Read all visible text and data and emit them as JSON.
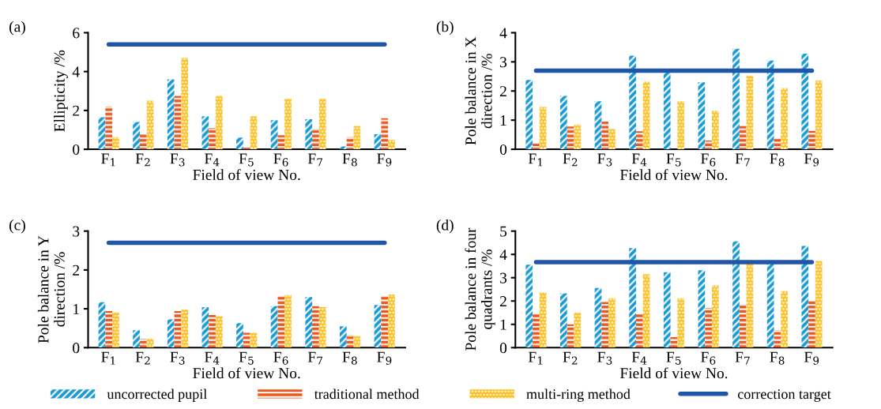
{
  "chart_data": [
    {
      "type": "bar",
      "annotations": [
        "(a)"
      ],
      "xlabel": "Field of view No.",
      "ylabel": "Ellipticity /%",
      "categories": [
        "F$_{1}$",
        "F$_{2}$",
        "F$_{3}$",
        "F$_{4}$",
        "F$_{5}$",
        "F$_{6}$",
        "F$_{7}$",
        "F$_{8}$",
        "F$_{9}$"
      ],
      "ylim": [
        0,
        6
      ],
      "yticks": [
        0,
        2,
        4,
        6
      ],
      "grid": false,
      "legend": "bottom",
      "series": [
        {
          "name": "uncorrected pupil",
          "color": "#1b9ad6",
          "values": [
            1.65,
            1.4,
            3.6,
            1.7,
            0.6,
            1.5,
            1.55,
            0.15,
            0.78
          ]
        },
        {
          "name": "traditional method",
          "color": "#e9581f",
          "values": [
            2.2,
            0.78,
            2.75,
            1.1,
            0.1,
            0.72,
            1.05,
            0.62,
            1.6
          ]
        },
        {
          "name": "multi-ring method",
          "color": "#fbbc14",
          "values": [
            0.62,
            2.5,
            4.7,
            2.75,
            1.7,
            2.6,
            2.6,
            1.2,
            0.48
          ]
        },
        {
          "name": "correction target",
          "type": "line",
          "color": "#1f56a8",
          "values": [
            5.4,
            5.4,
            5.4,
            5.4,
            5.4,
            5.4,
            5.4,
            5.4,
            5.4
          ]
        }
      ]
    },
    {
      "type": "bar",
      "annotations": [
        "(b)"
      ],
      "xlabel": "Field of view No.",
      "ylabel": "Pole balance in X\ndirection /%",
      "categories": [
        "F$_{1}$",
        "F$_{2}$",
        "F$_{3}$",
        "F$_{4}$",
        "F$_{5}$",
        "F$_{6}$",
        "F$_{7}$",
        "F$_{8}$",
        "F$_{9}$"
      ],
      "ylim": [
        0,
        4
      ],
      "yticks": [
        0,
        1,
        2,
        3,
        4
      ],
      "grid": false,
      "legend": "bottom",
      "series": [
        {
          "name": "uncorrected pupil",
          "color": "#1b9ad6",
          "values": [
            2.38,
            1.83,
            1.65,
            3.21,
            2.68,
            2.3,
            3.45,
            3.04,
            3.28
          ]
        },
        {
          "name": "traditional method",
          "color": "#e9581f",
          "values": [
            0.2,
            0.78,
            0.95,
            0.62,
            0,
            0.3,
            0.8,
            0.38,
            0.63
          ]
        },
        {
          "name": "multi-ring method",
          "color": "#fbbc14",
          "values": [
            1.45,
            0.85,
            0.7,
            2.32,
            1.65,
            1.32,
            2.53,
            2.1,
            2.35
          ]
        },
        {
          "name": "correction target",
          "type": "line",
          "color": "#1f56a8",
          "values": [
            2.7,
            2.7,
            2.7,
            2.7,
            2.7,
            2.7,
            2.7,
            2.7,
            2.7
          ]
        }
      ]
    },
    {
      "type": "bar",
      "annotations": [
        "(c)"
      ],
      "xlabel": "Field of view No.",
      "ylabel": "Pole balance in Y\ndirection /%",
      "categories": [
        "F$_{1}$",
        "F$_{2}$",
        "F$_{3}$",
        "F$_{4}$",
        "F$_{5}$",
        "F$_{6}$",
        "F$_{7}$",
        "F$_{8}$",
        "F$_{9}$"
      ],
      "ylim": [
        0,
        3
      ],
      "yticks": [
        0,
        1,
        2,
        3
      ],
      "grid": false,
      "legend": "bottom",
      "series": [
        {
          "name": "uncorrected pupil",
          "color": "#1b9ad6",
          "values": [
            1.17,
            0.45,
            0.73,
            1.04,
            0.63,
            1.07,
            1.3,
            0.55,
            1.1
          ]
        },
        {
          "name": "traditional method",
          "color": "#e9581f",
          "values": [
            0.94,
            0.23,
            0.94,
            0.84,
            0.38,
            1.33,
            1.07,
            0.33,
            1.33
          ]
        },
        {
          "name": "multi-ring method",
          "color": "#fbbc14",
          "values": [
            0.91,
            0.23,
            0.98,
            0.81,
            0.38,
            1.35,
            1.04,
            0.3,
            1.37
          ]
        },
        {
          "name": "correction target",
          "type": "line",
          "color": "#1f56a8",
          "values": [
            2.7,
            2.7,
            2.7,
            2.7,
            2.7,
            2.7,
            2.7,
            2.7,
            2.7
          ]
        }
      ]
    },
    {
      "type": "bar",
      "annotations": [
        "(d)"
      ],
      "xlabel": "Field of view No.",
      "ylabel": "Pole balance in four\nquadrants /%",
      "categories": [
        "F$_{1}$",
        "F$_{2}$",
        "F$_{3}$",
        "F$_{4}$",
        "F$_{5}$",
        "F$_{6}$",
        "F$_{7}$",
        "F$_{8}$",
        "F$_{9}$"
      ],
      "ylim": [
        0,
        5
      ],
      "yticks": [
        0,
        1,
        2,
        3,
        4,
        5
      ],
      "grid": false,
      "legend": "bottom",
      "series": [
        {
          "name": "uncorrected pupil",
          "color": "#1b9ad6",
          "values": [
            3.56,
            2.33,
            2.56,
            4.27,
            3.24,
            3.32,
            4.56,
            3.65,
            4.36
          ]
        },
        {
          "name": "traditional method",
          "color": "#e9581f",
          "values": [
            1.48,
            1.0,
            1.96,
            1.45,
            0.45,
            1.7,
            1.87,
            0.75,
            2.0
          ]
        },
        {
          "name": "multi-ring method",
          "color": "#fbbc14",
          "values": [
            2.37,
            1.5,
            2.12,
            3.15,
            2.12,
            2.68,
            3.6,
            2.42,
            3.72
          ]
        },
        {
          "name": "correction target",
          "type": "line",
          "color": "#1f56a8",
          "values": [
            3.67,
            3.67,
            3.67,
            3.67,
            3.67,
            3.67,
            3.67,
            3.67,
            3.67
          ]
        }
      ]
    }
  ]
}
